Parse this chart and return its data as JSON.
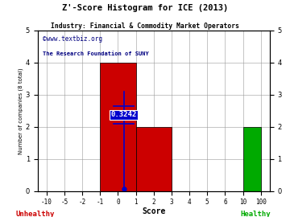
{
  "title": "Z'-Score Histogram for ICE (2013)",
  "subtitle": "Industry: Financial & Commodity Market Operators",
  "watermark1": "©www.textbiz.org",
  "watermark2": "The Research Foundation of SUNY",
  "xlabel": "Score",
  "ylabel": "Number of companies (8 total)",
  "x_tick_labels": [
    "-10",
    "-5",
    "-2",
    "-1",
    "0",
    "1",
    "2",
    "3",
    "4",
    "5",
    "6",
    "10",
    "100"
  ],
  "x_tick_positions": [
    -10,
    -5,
    -2,
    -1,
    0,
    1,
    2,
    3,
    4,
    5,
    6,
    10,
    100
  ],
  "bars": [
    {
      "x_left": -1,
      "x_right": 1,
      "height": 4,
      "color": "#cc0000"
    },
    {
      "x_left": 1,
      "x_right": 3,
      "height": 2,
      "color": "#cc0000"
    },
    {
      "x_left": 10,
      "x_right": 100,
      "height": 2,
      "color": "#00aa00"
    }
  ],
  "score_line_x": 0.3242,
  "score_label": "0.3242",
  "score_line_color": "#0000cc",
  "ylim": [
    0,
    5
  ],
  "unhealthy_label": "Unhealthy",
  "healthy_label": "Healthy",
  "unhealthy_color": "#cc0000",
  "healthy_color": "#00aa00",
  "title_color": "#000000",
  "subtitle_color": "#000000",
  "watermark1_color": "#000080",
  "watermark2_color": "#000080",
  "bg_color": "#ffffff",
  "grid_color": "#999999"
}
